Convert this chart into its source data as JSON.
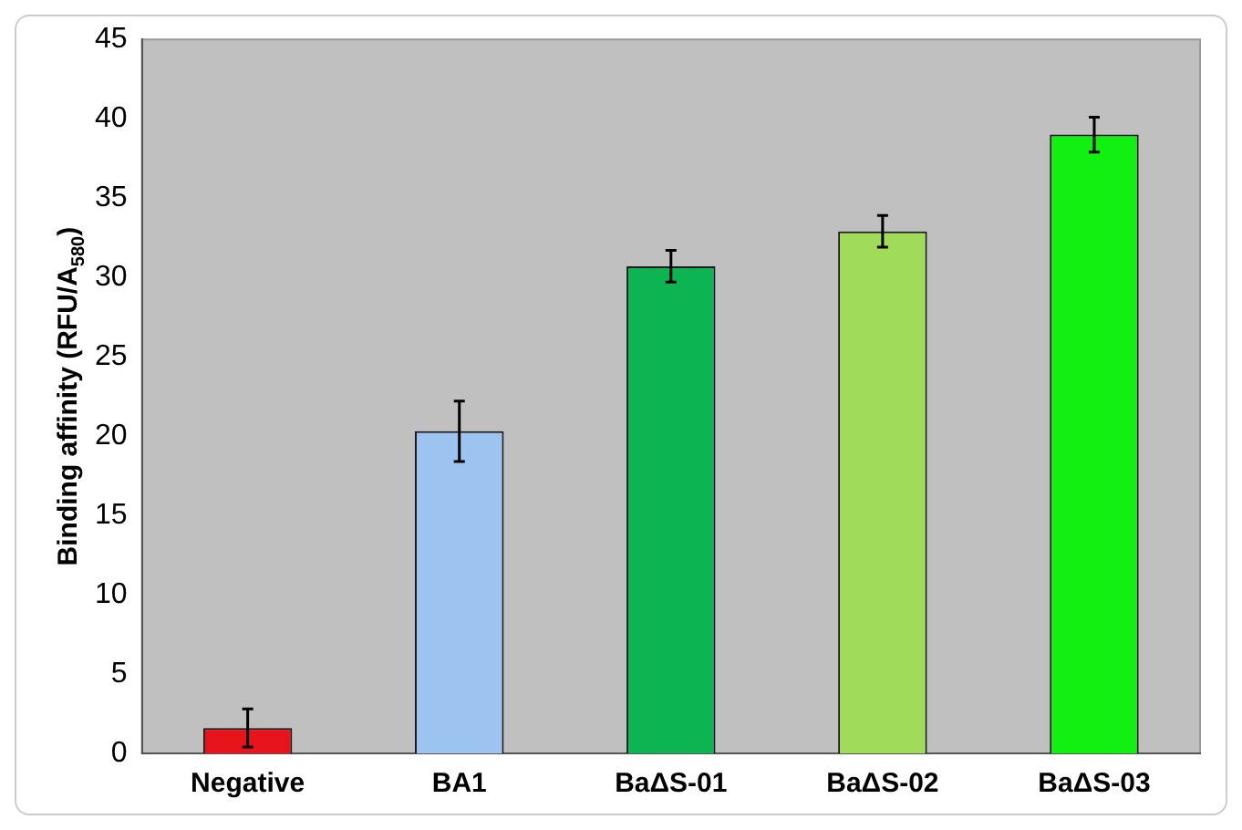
{
  "chart_data": {
    "type": "bar",
    "ylabel": "Binding affinity (RFU/A$_{580}$)",
    "categories": [
      "Negative",
      "BA1",
      "BaΔS-01",
      "BaΔS-02",
      "BaΔS-03"
    ],
    "values": [
      1.6,
      20.3,
      30.7,
      32.9,
      39.0
    ],
    "errors": [
      1.2,
      1.9,
      1.0,
      1.0,
      1.1
    ],
    "colors": [
      "#e8141c",
      "#9dc3f0",
      "#0db552",
      "#a0dc5a",
      "#11f011"
    ],
    "ylim": [
      0,
      45
    ],
    "yticks": [
      0,
      5,
      10,
      15,
      20,
      25,
      30,
      35,
      40,
      45
    ],
    "grid": false,
    "legend": false
  }
}
